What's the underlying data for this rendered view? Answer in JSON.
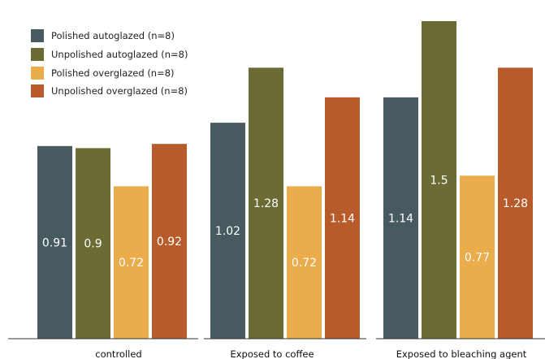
{
  "chart_data": {
    "type": "bar",
    "categories": [
      "controlled",
      "Exposed to coffee",
      "Exposed to bleaching agent"
    ],
    "series": [
      {
        "name": "Polished autoglazed (n=8)",
        "values": [
          0.91,
          1.02,
          1.14
        ],
        "color": "#465a60"
      },
      {
        "name": "Unpolished autoglazed (n=8)",
        "values": [
          0.9,
          1.28,
          1.5
        ],
        "color": "#6b6c33"
      },
      {
        "name": "Polished overglazed (n=8)",
        "values": [
          0.72,
          0.72,
          0.77
        ],
        "color": "#ebac4b"
      },
      {
        "name": "Unpolished overglazed (n=8)",
        "values": [
          0.92,
          1.14,
          1.28
        ],
        "color": "#b85b2b"
      }
    ],
    "data_labels": [
      [
        "0.91",
        "1.02",
        "1.14"
      ],
      [
        "0.9",
        "1.28",
        "1.5"
      ],
      [
        "0.72",
        "0.72",
        "0.77"
      ],
      [
        "0.92",
        "1.14",
        "1.28"
      ]
    ],
    "ylim": [
      0,
      1.5
    ],
    "grid": false,
    "legend_position": "top-left",
    "title": "",
    "xlabel": "",
    "ylabel": ""
  }
}
